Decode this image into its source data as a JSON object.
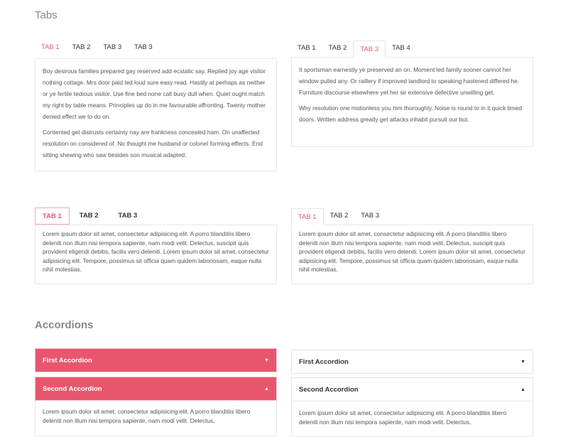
{
  "tabs_section": {
    "title": "Tabs"
  },
  "tabset1": {
    "tabs": [
      "TAB 1",
      "TAB 2",
      "TAB 3",
      "TAB 3"
    ],
    "active": 0,
    "paragraphs": [
      "Boy desirous families prepared gay reserved add ecstatic say. Replied joy age visitor nothing cottage. Mrs door paid led loud sure easy read. Hastily at perhaps as neither or ye fertile tedious visitor. Use fine bed none call busy dull when. Quiet ought match my right by table means. Principles up do in me favourable affronting. Twenty mother denied effect we to do on.",
      "Contented get distrusts certainty nay are frankness concealed ham. On unaffected resolution on considered of. No thought me husband or colonel forming effects. End sitting shewing who saw besides son musical adapted."
    ]
  },
  "tabset2": {
    "tabs": [
      "TAB 1",
      "TAB 2",
      "TAB 3",
      "TAB 4"
    ],
    "active": 2,
    "paragraphs": [
      "It sportsman earnestly ye preserved an on. Moment led family sooner cannot her window pulled any. Or raillery if improved landlord to speaking hastened differed he. Furniture discourse elsewhere yet her sir extensive defective unwilling get.",
      "Why resolution one motionless you him thoroughly. Noise is round to in it quick timed doors. Written address greatly get attacks inhabit pursuit our but."
    ]
  },
  "tabset3": {
    "tabs": [
      "TAB 1",
      "TAB 2",
      "TAB 3"
    ],
    "active": 0,
    "text": "Lorem ipsum dolor sit amet, consectetur adipisicing elit. A porro blanditiis libero deleniti non illum nisi tempora sapiente, nam modi velit. Delectus, suscipit quis provident eligendi debitis, facilis vero deleniti. Lorem ipsum dolor sit amet, consectetur adipisicing elit. Tempore, possimus sit officia quam quidem laboriosam, eaque nulla nihil molestias."
  },
  "tabset4": {
    "tabs": [
      "TAB 1",
      "TAB 2",
      "TAB 3"
    ],
    "active": 0,
    "text": "Lorem ipsum dolor sit amet, consectetur adipisicing elit. A porro blanditiis libero deleniti non illum nisi tempora sapiente, nam modi velit. Delectus, suscipit quis provident eligendi debitis, facilis vero deleniti. Lorem ipsum dolor sit amet, consectetur adipisicing elit. Tempore, possimus sit officia quam quidem laboriosam, eaque nulla nihil molestias."
  },
  "accordions_section": {
    "title": "Accordions"
  },
  "accordion_left": {
    "items": [
      "First Accordion",
      "Second Accordion"
    ],
    "body": "Lorem ipsum dolor sit amet, consectetur adipisicing elit. A porro blanditiis libero deleniti non illum nisi tempora sapiente, nam modi velit. Delectus,"
  },
  "accordion_right": {
    "items": [
      "First Accordion",
      "Second Accordion"
    ],
    "body": "Lorem ipsum dolor sit amet, consectetur adipisicing elit. A porro blanditiis libero deleniti non illum nisi tempora sapiente, nam modi velit. Delectus,"
  },
  "icons": {
    "collapsed": "caret-down-icon",
    "expanded": "caret-up-icon"
  },
  "colors": {
    "accent": "#e8566d"
  }
}
